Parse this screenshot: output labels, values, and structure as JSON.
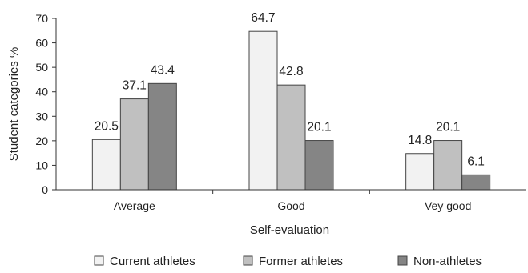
{
  "chart_data": {
    "type": "bar",
    "title": "",
    "xlabel": "Self-evaluation",
    "ylabel": "Student categories %",
    "categories": [
      "Average",
      "Good",
      "Vey good"
    ],
    "series": [
      {
        "name": "Current athletes",
        "values": [
          20.5,
          64.7,
          14.8
        ],
        "color": "#f2f2f2"
      },
      {
        "name": "Former athletes",
        "values": [
          37.1,
          42.8,
          20.1
        ],
        "color": "#c0c0c0"
      },
      {
        "name": "Non-athletes",
        "values": [
          43.4,
          20.1,
          6.1
        ],
        "color": "#858585"
      }
    ],
    "ylim": [
      0,
      70
    ],
    "yticks": [
      0,
      10,
      20,
      30,
      40,
      50,
      60,
      70
    ],
    "grid": false,
    "legend_position": "bottom",
    "data_labels": true
  }
}
